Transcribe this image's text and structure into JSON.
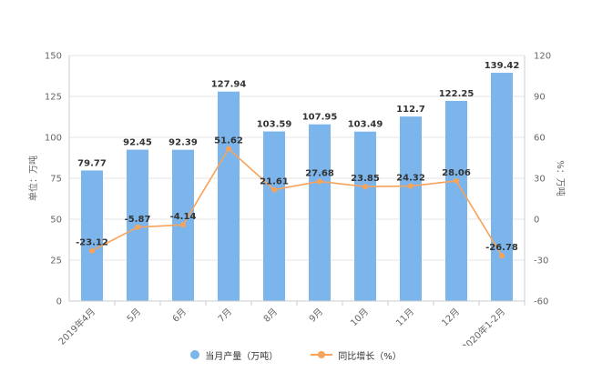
{
  "chart_data": {
    "type": "bar",
    "categories": [
      "2019年4月",
      "5月",
      "6月",
      "7月",
      "8月",
      "9月",
      "10月",
      "11月",
      "12月",
      "2020年1-2月"
    ],
    "series": [
      {
        "name": "当月产量（万吨）",
        "type": "bar",
        "axis": "left",
        "values": [
          79.77,
          92.45,
          92.39,
          127.94,
          103.59,
          107.95,
          103.49,
          112.7,
          122.25,
          139.42
        ],
        "labels": [
          "79.77",
          "92.45",
          "92.39",
          "127.94",
          "103.59",
          "107.95",
          "103.49",
          "112.7",
          "122.25",
          "139.42"
        ],
        "color": "#7cb5ec"
      },
      {
        "name": "同比增长（%）",
        "type": "line",
        "axis": "right",
        "values": [
          -23.12,
          -5.87,
          -4.14,
          51.62,
          21.61,
          27.68,
          23.85,
          24.32,
          28.06,
          -26.78
        ],
        "labels": [
          "-23.12",
          "-5.87",
          "-4.14",
          "51.62",
          "21.61",
          "27.68",
          "23.85",
          "24.32",
          "28.06",
          "-26.78"
        ],
        "color": "#f7a35c"
      }
    ],
    "ylabel": "单位：万吨",
    "y2label": "%：万吨",
    "ylim": [
      0,
      150
    ],
    "y2lim": [
      -60,
      120
    ],
    "yticks": [
      "0",
      "25",
      "50",
      "75",
      "100",
      "125",
      "150"
    ],
    "y2ticks": [
      "-60",
      "-30",
      "0",
      "30",
      "60",
      "90",
      "120"
    ],
    "grid": true,
    "legend_position": "bottom"
  },
  "legend": {
    "bar_label": "当月产量（万吨）",
    "line_label": "同比增长（%）"
  }
}
